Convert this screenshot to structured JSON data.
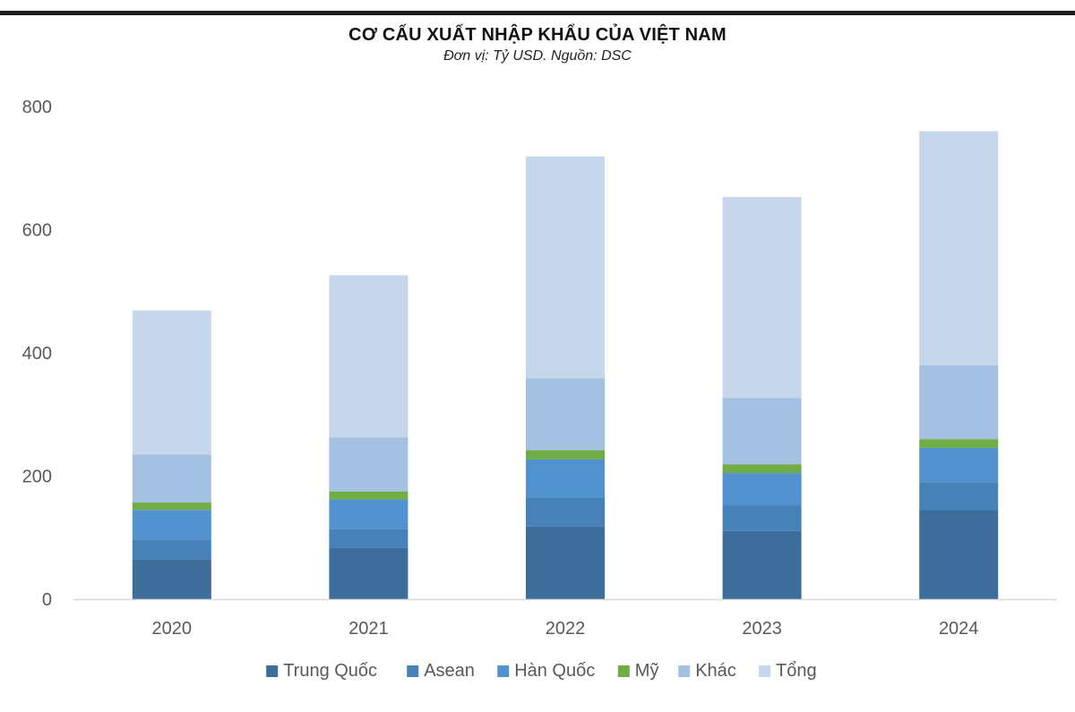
{
  "chart_data": {
    "type": "bar",
    "stacked": true,
    "title": "CƠ CẤU XUẤT NHẬP KHẨU CỦA VIỆT NAM",
    "subtitle": "Đơn vị: Tỷ USD. Nguồn: DSC",
    "categories": [
      "2020",
      "2021",
      "2022",
      "2023",
      "2024"
    ],
    "series": [
      {
        "name": "Trung Quốc",
        "color": "#3d6d9b",
        "values": [
          65,
          83,
          118,
          111,
          144
        ]
      },
      {
        "name": "Asean",
        "color": "#4681b8",
        "values": [
          32,
          31,
          47,
          41,
          46
        ]
      },
      {
        "name": "Hàn Quốc",
        "color": "#5292cf",
        "values": [
          48,
          48,
          62,
          53,
          56
        ]
      },
      {
        "name": "Mỹ",
        "color": "#70ad47",
        "values": [
          12,
          13,
          15,
          14,
          14
        ]
      },
      {
        "name": "Khác",
        "color": "#a5c1e2",
        "values": [
          78,
          88,
          117,
          108,
          120
        ]
      },
      {
        "name": "Tổng",
        "color": "#c6d6eb",
        "values": [
          234,
          263,
          360,
          326,
          380
        ]
      }
    ],
    "ylim": [
      0,
      800
    ],
    "yticks": [
      0,
      200,
      400,
      600,
      800
    ],
    "grid": false,
    "legend": "bottom",
    "xlabel": "",
    "ylabel": ""
  }
}
